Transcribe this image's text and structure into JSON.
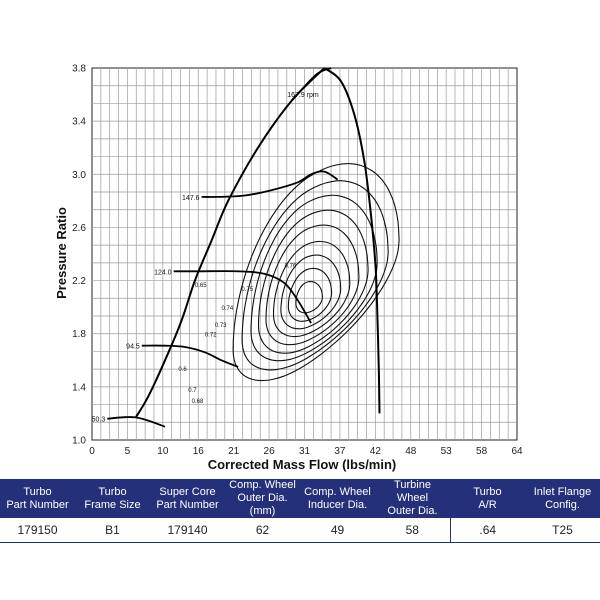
{
  "chart_data": {
    "type": "line",
    "title": "",
    "xlabel": "Corrected Mass Flow (lbs/min)",
    "ylabel": "Pressure Ratio",
    "xlim": [
      0,
      64
    ],
    "ylim": [
      1.0,
      3.8
    ],
    "x_ticks": [
      "0",
      "5",
      "10",
      "16",
      "21",
      "26",
      "31",
      "37",
      "42",
      "48",
      "53",
      "58",
      "64"
    ],
    "y_ticks": [
      "1.0",
      "1.4",
      "1.8",
      "2.2",
      "2.6",
      "3.0",
      "3.4",
      "3.8"
    ],
    "grid": true,
    "surge_line": [
      [
        6.6,
        1.17
      ],
      [
        8.5,
        1.33
      ],
      [
        11,
        1.6
      ],
      [
        13.5,
        1.9
      ],
      [
        15.5,
        2.2
      ],
      [
        18,
        2.5
      ],
      [
        20.5,
        2.8
      ],
      [
        25,
        3.2
      ],
      [
        30,
        3.55
      ],
      [
        35,
        3.8
      ]
    ],
    "choke_line": [
      [
        35,
        3.8
      ],
      [
        37.5,
        3.7
      ],
      [
        39.5,
        3.45
      ],
      [
        41,
        3.1
      ],
      [
        42,
        2.7
      ],
      [
        42.7,
        2.3
      ],
      [
        43,
        1.9
      ],
      [
        43.2,
        1.5
      ],
      [
        43.3,
        1.2
      ]
    ],
    "speed_lines": [
      {
        "name": "50.3",
        "points": [
          [
            2.3,
            1.16
          ],
          [
            6.6,
            1.17
          ],
          [
            11,
            1.1
          ]
        ]
      },
      {
        "name": "94.5",
        "points": [
          [
            7.5,
            1.71
          ],
          [
            11,
            1.71
          ],
          [
            14,
            1.7
          ],
          [
            17,
            1.66
          ],
          [
            19.5,
            1.6
          ],
          [
            22,
            1.55
          ]
        ]
      },
      {
        "name": "124.0",
        "points": [
          [
            12.3,
            2.27
          ],
          [
            16,
            2.27
          ],
          [
            22,
            2.27
          ],
          [
            26,
            2.25
          ],
          [
            29,
            2.18
          ],
          [
            31,
            2.05
          ],
          [
            33,
            1.88
          ]
        ]
      },
      {
        "name": "147.6",
        "points": [
          [
            16.5,
            2.83
          ],
          [
            19,
            2.83
          ],
          [
            23,
            2.84
          ],
          [
            27,
            2.88
          ],
          [
            31,
            2.94
          ],
          [
            33,
            3.0
          ],
          [
            35,
            3.02
          ],
          [
            37,
            2.96
          ]
        ]
      },
      {
        "name": "167.9 rpm",
        "points": [
          [
            30,
            3.55
          ],
          [
            32,
            3.66
          ],
          [
            34,
            3.76
          ],
          [
            36,
            3.8
          ]
        ]
      }
    ],
    "efficiency_islands": [
      {
        "label": "0.6"
      },
      {
        "label": "0.65"
      },
      {
        "label": "0.68"
      },
      {
        "label": "0.7"
      },
      {
        "label": "0.72"
      },
      {
        "label": "0.73"
      },
      {
        "label": "0.74"
      },
      {
        "label": "0.75"
      },
      {
        "label": "0.76"
      }
    ]
  },
  "table": {
    "headers": [
      [
        "Turbo",
        "Part Number"
      ],
      [
        "Turbo",
        "Frame Size"
      ],
      [
        "Super Core",
        "Part Number"
      ],
      [
        "Comp. Wheel",
        "Outer Dia. (mm)"
      ],
      [
        "Comp. Wheel",
        "Inducer Dia."
      ],
      [
        "Turbine Wheel",
        "Outer Dia."
      ],
      [
        "Turbo",
        "A/R"
      ],
      [
        "Inlet Flange",
        "Config."
      ]
    ],
    "row": [
      "179150",
      "B1",
      "179140",
      "62",
      "49",
      "58",
      ".64",
      "T25"
    ]
  }
}
